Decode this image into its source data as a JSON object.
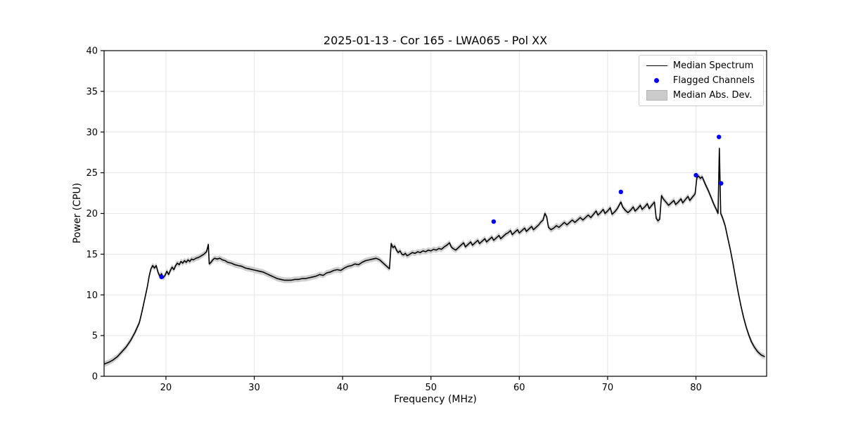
{
  "figure": {
    "title": "2025-01-13 - Cor 165 - LWA065 - Pol XX",
    "xlabel": "Frequency (MHz)",
    "ylabel": "Power (CPU)"
  },
  "legend": {
    "entries": [
      {
        "label": "Median Spectrum",
        "type": "line",
        "color": "#000000"
      },
      {
        "label": "Flagged Channels",
        "type": "dot",
        "color": "#0000ff"
      },
      {
        "label": "Median Abs. Dev.",
        "type": "patch",
        "color": "#cccccc"
      }
    ]
  },
  "chart_data": {
    "type": "line",
    "title": "2025-01-13 - Cor 165 - LWA065 - Pol XX",
    "xlabel": "Frequency (MHz)",
    "ylabel": "Power (CPU)",
    "xlim": [
      13,
      88
    ],
    "ylim": [
      0,
      40
    ],
    "xticks": [
      20,
      30,
      40,
      50,
      60,
      70,
      80
    ],
    "yticks": [
      0,
      5,
      10,
      15,
      20,
      25,
      30,
      35,
      40
    ],
    "grid": true,
    "grid_color": "#e6e6e6",
    "axis_color": "#000000",
    "band_half_width": 0.35,
    "band_color": "#c9c9c9",
    "line_color": "#000000",
    "flag_color": "#0000ff",
    "series": [
      {
        "name": "Median Spectrum",
        "points": [
          [
            13.0,
            1.5
          ],
          [
            13.5,
            1.7
          ],
          [
            14.0,
            2.0
          ],
          [
            14.5,
            2.4
          ],
          [
            15.0,
            3.0
          ],
          [
            15.5,
            3.6
          ],
          [
            16.0,
            4.4
          ],
          [
            16.5,
            5.4
          ],
          [
            17.0,
            6.6
          ],
          [
            17.3,
            8.0
          ],
          [
            17.6,
            9.5
          ],
          [
            17.9,
            11.0
          ],
          [
            18.1,
            12.3
          ],
          [
            18.3,
            13.2
          ],
          [
            18.5,
            13.6
          ],
          [
            18.7,
            13.3
          ],
          [
            18.9,
            13.6
          ],
          [
            19.1,
            12.8
          ],
          [
            19.3,
            12.3
          ],
          [
            19.5,
            12.6
          ],
          [
            19.7,
            12.1
          ],
          [
            19.9,
            12.4
          ],
          [
            20.1,
            12.9
          ],
          [
            20.3,
            12.5
          ],
          [
            20.5,
            13.0
          ],
          [
            20.7,
            13.4
          ],
          [
            20.9,
            13.1
          ],
          [
            21.1,
            13.6
          ],
          [
            21.3,
            13.9
          ],
          [
            21.5,
            13.7
          ],
          [
            21.7,
            14.1
          ],
          [
            21.9,
            13.9
          ],
          [
            22.1,
            14.2
          ],
          [
            22.3,
            14.0
          ],
          [
            22.5,
            14.3
          ],
          [
            22.7,
            14.1
          ],
          [
            22.9,
            14.4
          ],
          [
            23.1,
            14.3
          ],
          [
            23.4,
            14.5
          ],
          [
            23.7,
            14.6
          ],
          [
            24.0,
            14.8
          ],
          [
            24.3,
            15.0
          ],
          [
            24.6,
            15.3
          ],
          [
            24.8,
            16.2
          ],
          [
            24.9,
            13.8
          ],
          [
            25.1,
            14.0
          ],
          [
            25.3,
            14.3
          ],
          [
            25.5,
            14.5
          ],
          [
            25.8,
            14.4
          ],
          [
            26.1,
            14.5
          ],
          [
            26.4,
            14.3
          ],
          [
            26.7,
            14.2
          ],
          [
            27.0,
            14.0
          ],
          [
            27.4,
            13.9
          ],
          [
            27.8,
            13.7
          ],
          [
            28.2,
            13.6
          ],
          [
            28.6,
            13.5
          ],
          [
            29.0,
            13.3
          ],
          [
            29.4,
            13.2
          ],
          [
            29.8,
            13.1
          ],
          [
            30.2,
            13.0
          ],
          [
            30.6,
            12.9
          ],
          [
            31.0,
            12.8
          ],
          [
            31.4,
            12.6
          ],
          [
            31.8,
            12.4
          ],
          [
            32.2,
            12.2
          ],
          [
            32.6,
            12.0
          ],
          [
            33.0,
            11.9
          ],
          [
            33.4,
            11.8
          ],
          [
            33.8,
            11.8
          ],
          [
            34.2,
            11.8
          ],
          [
            34.6,
            11.9
          ],
          [
            35.0,
            11.9
          ],
          [
            35.4,
            12.0
          ],
          [
            35.8,
            12.0
          ],
          [
            36.2,
            12.1
          ],
          [
            36.6,
            12.2
          ],
          [
            37.0,
            12.3
          ],
          [
            37.4,
            12.5
          ],
          [
            37.8,
            12.4
          ],
          [
            38.2,
            12.7
          ],
          [
            38.6,
            12.8
          ],
          [
            39.0,
            13.0
          ],
          [
            39.4,
            13.1
          ],
          [
            39.8,
            13.0
          ],
          [
            40.2,
            13.3
          ],
          [
            40.6,
            13.5
          ],
          [
            41.0,
            13.6
          ],
          [
            41.4,
            13.8
          ],
          [
            41.8,
            13.7
          ],
          [
            42.2,
            14.0
          ],
          [
            42.6,
            14.2
          ],
          [
            43.0,
            14.3
          ],
          [
            43.4,
            14.4
          ],
          [
            43.8,
            14.5
          ],
          [
            44.2,
            14.3
          ],
          [
            44.6,
            13.9
          ],
          [
            45.0,
            13.5
          ],
          [
            45.3,
            13.2
          ],
          [
            45.5,
            16.3
          ],
          [
            45.7,
            15.8
          ],
          [
            45.9,
            16.0
          ],
          [
            46.1,
            15.5
          ],
          [
            46.3,
            15.2
          ],
          [
            46.5,
            15.4
          ],
          [
            46.7,
            15.0
          ],
          [
            46.9,
            14.9
          ],
          [
            47.1,
            15.1
          ],
          [
            47.3,
            14.8
          ],
          [
            47.6,
            15.0
          ],
          [
            47.9,
            15.2
          ],
          [
            48.2,
            15.1
          ],
          [
            48.5,
            15.3
          ],
          [
            48.8,
            15.2
          ],
          [
            49.1,
            15.4
          ],
          [
            49.4,
            15.3
          ],
          [
            49.7,
            15.5
          ],
          [
            50.0,
            15.4
          ],
          [
            50.3,
            15.6
          ],
          [
            50.6,
            15.5
          ],
          [
            50.9,
            15.7
          ],
          [
            51.2,
            15.6
          ],
          [
            51.5,
            15.9
          ],
          [
            51.8,
            16.1
          ],
          [
            52.1,
            16.4
          ],
          [
            52.3,
            15.9
          ],
          [
            52.5,
            15.7
          ],
          [
            52.8,
            15.5
          ],
          [
            53.1,
            15.8
          ],
          [
            53.4,
            16.1
          ],
          [
            53.7,
            16.4
          ],
          [
            53.9,
            15.9
          ],
          [
            54.2,
            16.2
          ],
          [
            54.5,
            16.5
          ],
          [
            54.7,
            16.1
          ],
          [
            55.0,
            16.4
          ],
          [
            55.3,
            16.7
          ],
          [
            55.5,
            16.3
          ],
          [
            55.8,
            16.6
          ],
          [
            56.1,
            16.9
          ],
          [
            56.3,
            16.5
          ],
          [
            56.6,
            16.8
          ],
          [
            56.9,
            17.1
          ],
          [
            57.1,
            16.7
          ],
          [
            57.4,
            17.0
          ],
          [
            57.7,
            17.3
          ],
          [
            57.9,
            16.9
          ],
          [
            58.2,
            17.2
          ],
          [
            58.5,
            17.5
          ],
          [
            58.7,
            17.6
          ],
          [
            59.0,
            17.9
          ],
          [
            59.2,
            17.4
          ],
          [
            59.5,
            17.7
          ],
          [
            59.8,
            18.0
          ],
          [
            60.0,
            17.6
          ],
          [
            60.3,
            17.9
          ],
          [
            60.6,
            18.2
          ],
          [
            60.8,
            17.8
          ],
          [
            61.1,
            18.1
          ],
          [
            61.4,
            18.4
          ],
          [
            61.6,
            18.0
          ],
          [
            61.9,
            18.3
          ],
          [
            62.2,
            18.6
          ],
          [
            62.4,
            18.9
          ],
          [
            62.7,
            19.2
          ],
          [
            62.9,
            20.0
          ],
          [
            63.1,
            19.6
          ],
          [
            63.3,
            18.3
          ],
          [
            63.6,
            18.0
          ],
          [
            63.9,
            18.2
          ],
          [
            64.2,
            18.5
          ],
          [
            64.5,
            18.3
          ],
          [
            64.8,
            18.6
          ],
          [
            65.1,
            18.9
          ],
          [
            65.4,
            18.6
          ],
          [
            65.7,
            18.9
          ],
          [
            66.0,
            19.2
          ],
          [
            66.3,
            18.9
          ],
          [
            66.6,
            19.2
          ],
          [
            66.9,
            19.5
          ],
          [
            67.2,
            19.2
          ],
          [
            67.5,
            19.5
          ],
          [
            67.8,
            19.8
          ],
          [
            68.1,
            19.5
          ],
          [
            68.4,
            19.9
          ],
          [
            68.7,
            20.3
          ],
          [
            68.9,
            19.8
          ],
          [
            69.2,
            20.1
          ],
          [
            69.5,
            20.5
          ],
          [
            69.7,
            20.0
          ],
          [
            70.0,
            20.3
          ],
          [
            70.3,
            20.7
          ],
          [
            70.5,
            19.9
          ],
          [
            70.8,
            20.2
          ],
          [
            71.1,
            20.6
          ],
          [
            71.3,
            21.0
          ],
          [
            71.5,
            21.4
          ],
          [
            71.7,
            20.8
          ],
          [
            72.0,
            20.4
          ],
          [
            72.3,
            20.1
          ],
          [
            72.6,
            20.4
          ],
          [
            72.9,
            20.8
          ],
          [
            73.1,
            20.3
          ],
          [
            73.4,
            20.6
          ],
          [
            73.7,
            21.0
          ],
          [
            73.9,
            20.5
          ],
          [
            74.2,
            20.8
          ],
          [
            74.5,
            21.2
          ],
          [
            74.7,
            20.6
          ],
          [
            75.0,
            21.0
          ],
          [
            75.3,
            21.4
          ],
          [
            75.5,
            19.4
          ],
          [
            75.7,
            19.1
          ],
          [
            75.9,
            19.3
          ],
          [
            76.1,
            22.2
          ],
          [
            76.3,
            21.8
          ],
          [
            76.6,
            21.4
          ],
          [
            76.9,
            21.0
          ],
          [
            77.2,
            21.3
          ],
          [
            77.5,
            21.6
          ],
          [
            77.7,
            21.1
          ],
          [
            78.0,
            21.4
          ],
          [
            78.3,
            21.8
          ],
          [
            78.5,
            21.3
          ],
          [
            78.8,
            21.7
          ],
          [
            79.1,
            22.1
          ],
          [
            79.3,
            21.6
          ],
          [
            79.6,
            22.0
          ],
          [
            79.9,
            22.4
          ],
          [
            80.1,
            24.4
          ],
          [
            80.3,
            24.6
          ],
          [
            80.5,
            24.3
          ],
          [
            80.7,
            24.5
          ],
          [
            80.9,
            24.0
          ],
          [
            81.1,
            23.5
          ],
          [
            81.4,
            22.8
          ],
          [
            81.7,
            22.0
          ],
          [
            82.0,
            21.2
          ],
          [
            82.3,
            20.5
          ],
          [
            82.5,
            20.0
          ],
          [
            82.65,
            28.0
          ],
          [
            82.8,
            20.0
          ],
          [
            83.0,
            19.5
          ],
          [
            83.3,
            18.5
          ],
          [
            83.6,
            17.0
          ],
          [
            83.9,
            15.5
          ],
          [
            84.2,
            13.8
          ],
          [
            84.5,
            12.0
          ],
          [
            84.8,
            10.2
          ],
          [
            85.1,
            8.6
          ],
          [
            85.4,
            7.2
          ],
          [
            85.7,
            6.0
          ],
          [
            86.0,
            5.0
          ],
          [
            86.3,
            4.2
          ],
          [
            86.6,
            3.6
          ],
          [
            87.0,
            3.0
          ],
          [
            87.4,
            2.6
          ],
          [
            87.8,
            2.4
          ]
        ]
      },
      {
        "name": "Flagged Channels",
        "points": [
          [
            19.5,
            12.2
          ],
          [
            57.1,
            19.0
          ],
          [
            71.5,
            22.65
          ],
          [
            80.0,
            24.7
          ],
          [
            82.6,
            29.4
          ],
          [
            82.85,
            23.7
          ]
        ]
      }
    ],
    "legend_entries": [
      "Median Spectrum",
      "Flagged Channels",
      "Median Abs. Dev."
    ]
  }
}
